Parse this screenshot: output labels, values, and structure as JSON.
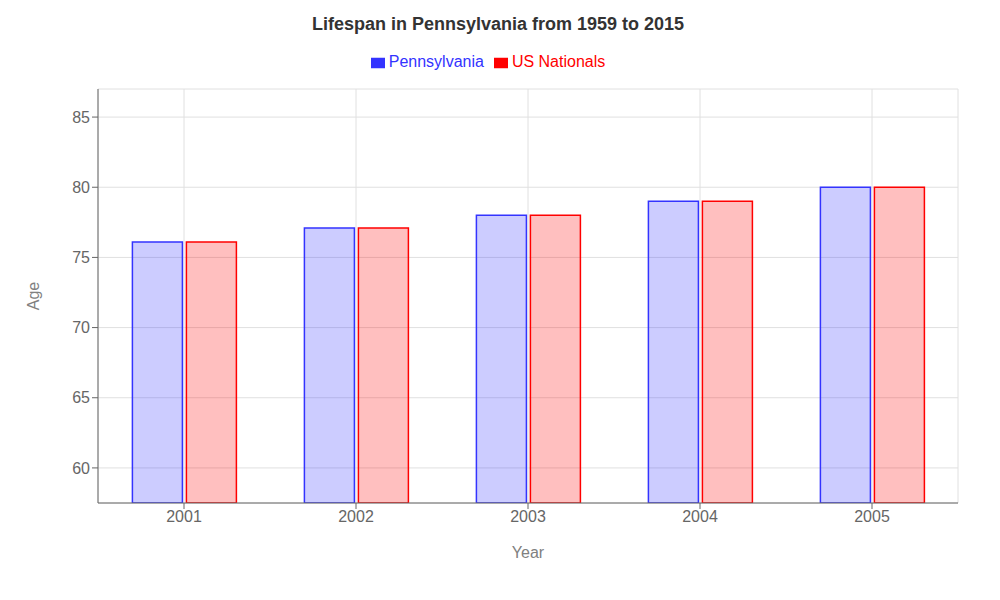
{
  "chart_data": {
    "type": "bar",
    "title": "Lifespan in Pennsylvania from 1959 to 2015",
    "x_label": "Year",
    "y_label": "Age",
    "categories": [
      "2001",
      "2002",
      "2003",
      "2004",
      "2005"
    ],
    "series": [
      {
        "name": "Pennsylvania",
        "color": "#3333ff",
        "values": [
          76.1,
          77.1,
          78.0,
          79.0,
          80.0
        ]
      },
      {
        "name": "US Nationals",
        "color": "#ff0000",
        "values": [
          76.1,
          77.1,
          78.0,
          79.0,
          80.0
        ]
      }
    ],
    "ylim": [
      57.5,
      87
    ],
    "yticks": [
      60,
      65,
      70,
      75,
      80,
      85
    ],
    "grid": true,
    "legend": "top"
  }
}
